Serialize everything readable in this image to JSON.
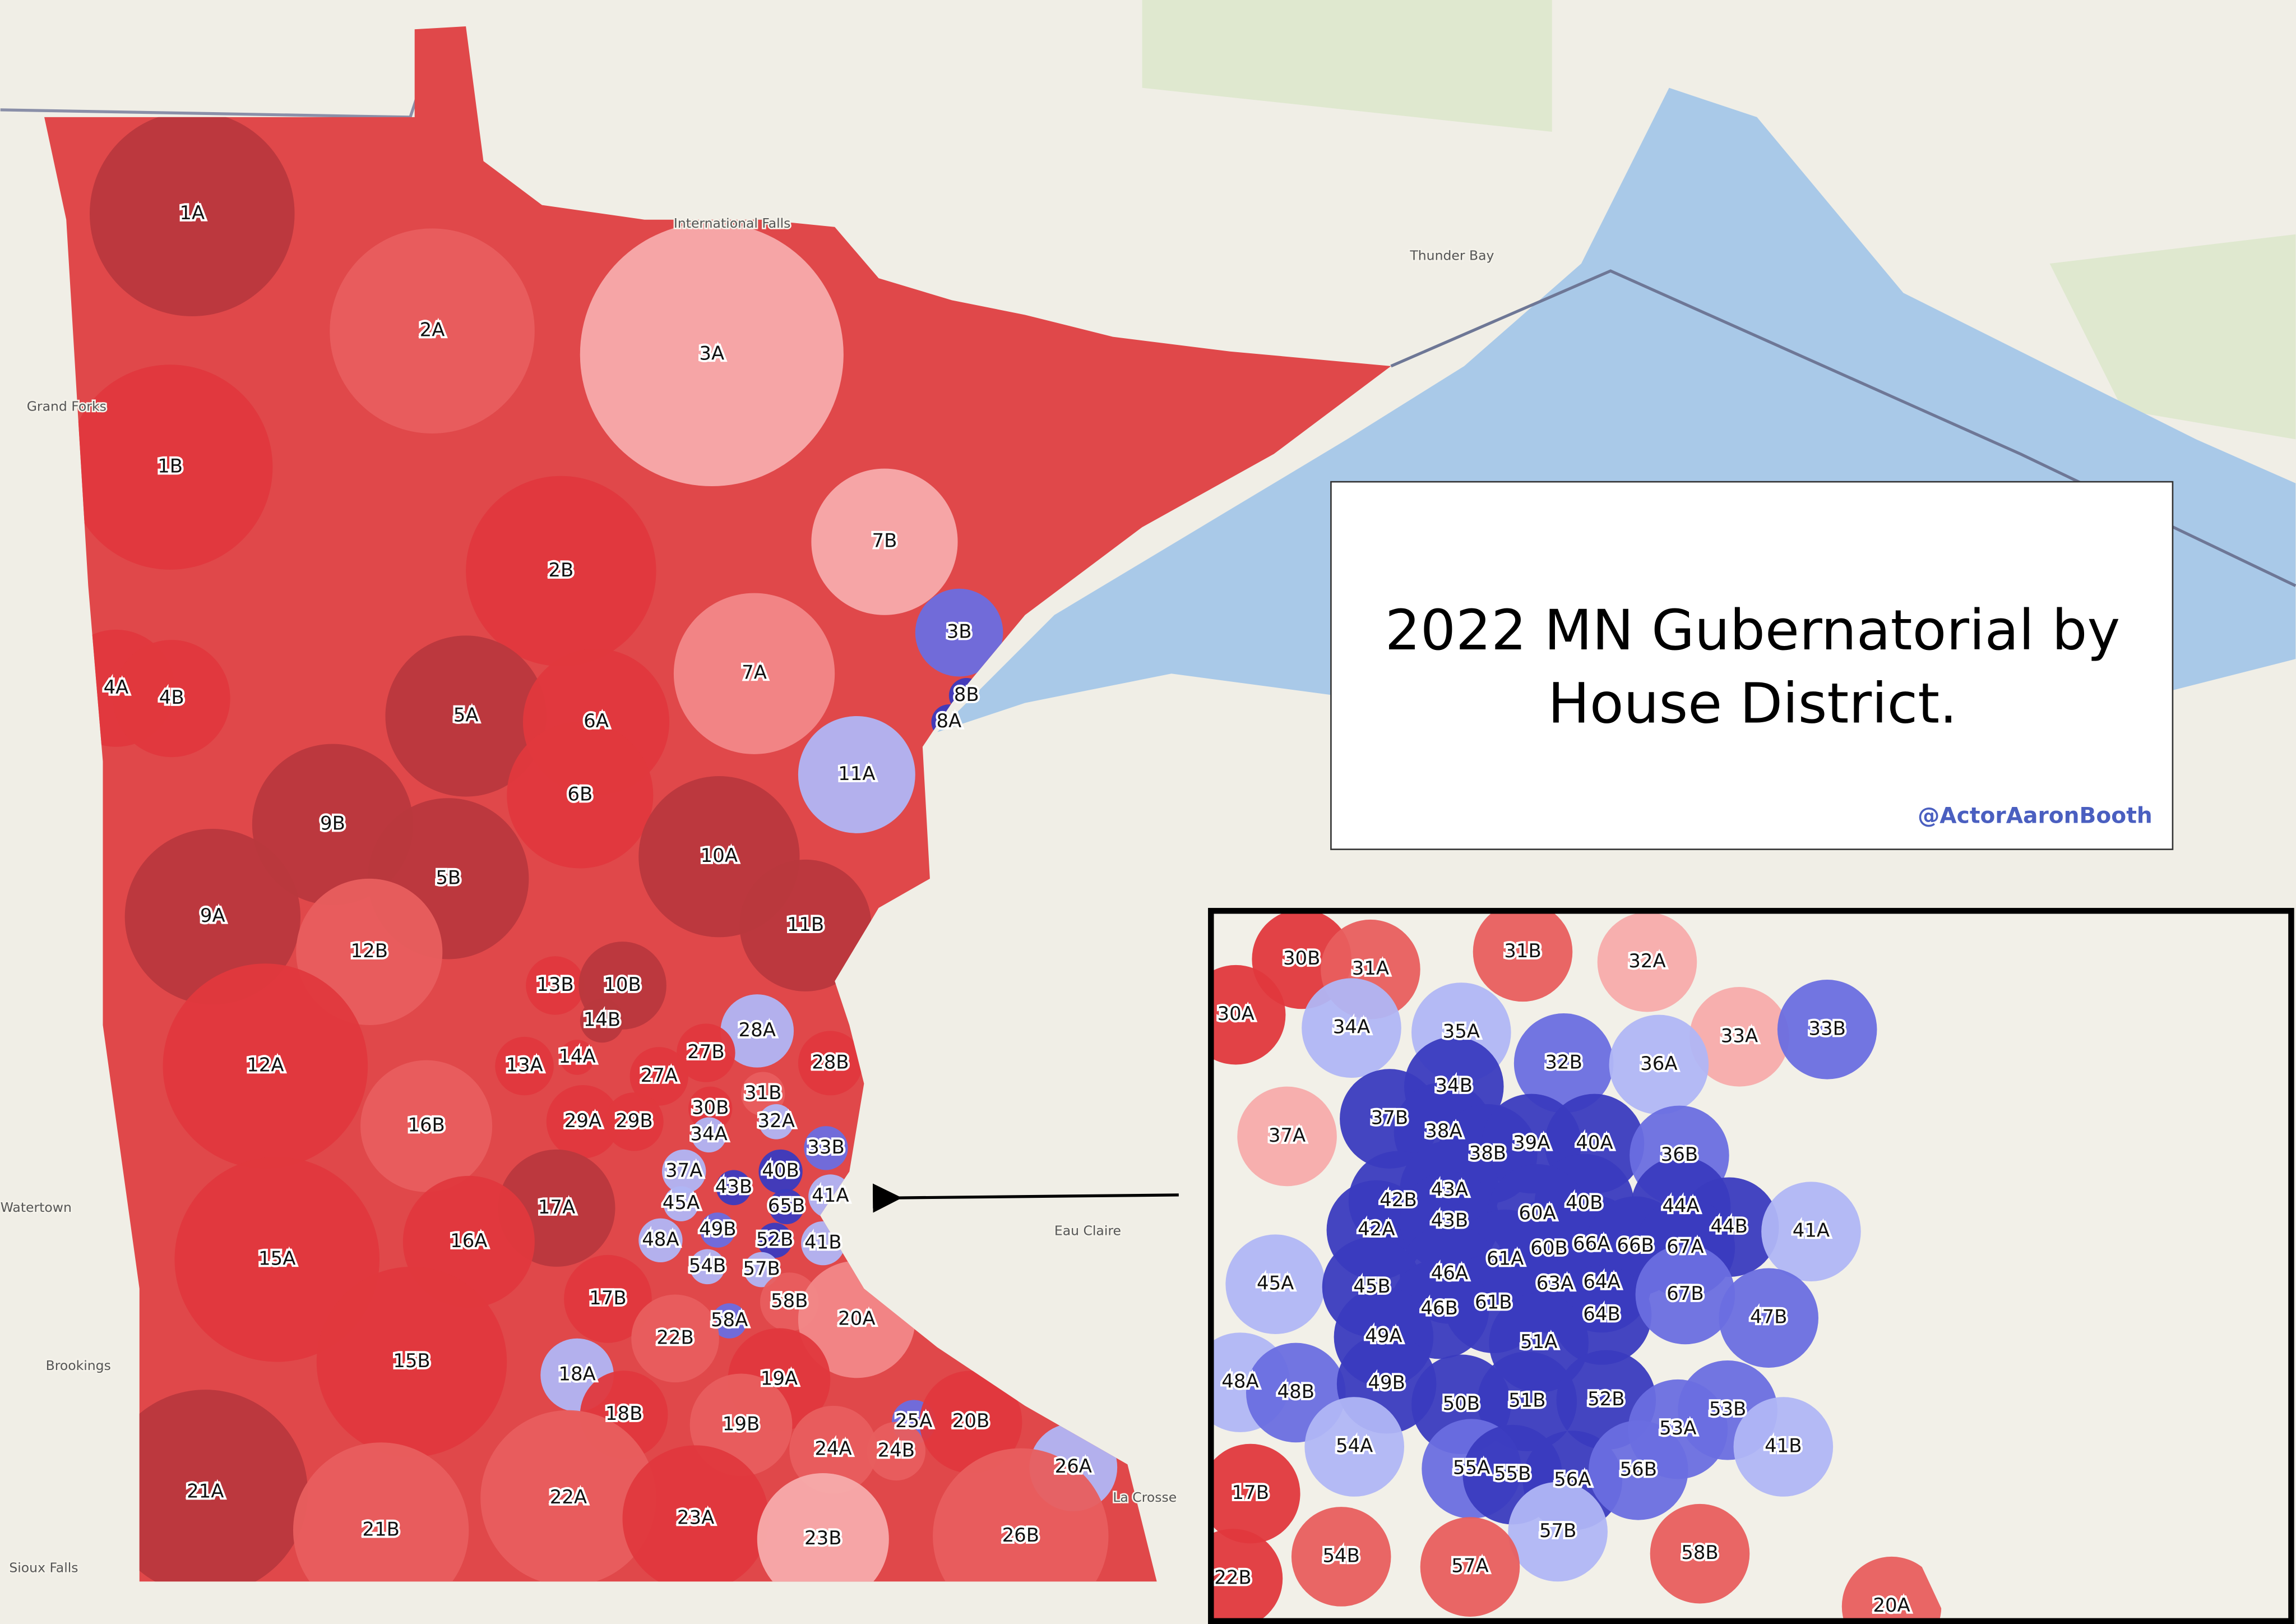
{
  "title_lines": [
    "2022 MN Gubernatorial by",
    "House District."
  ],
  "credit": "@ActorAaronBooth",
  "places": [
    "International Falls",
    "Thunder Bay",
    "Grand Forks",
    "Watertown",
    "Brookings",
    "Sioux Falls",
    "Eau Claire",
    "La Crosse"
  ],
  "districts": [
    "1A",
    "2A",
    "3A",
    "1B",
    "2B",
    "7B",
    "3B",
    "4A",
    "4B",
    "5A",
    "6A",
    "7A",
    "8B",
    "8A",
    "11A",
    "6B",
    "9B",
    "5B",
    "10A",
    "9A",
    "12B",
    "11B",
    "13B",
    "10B",
    "14B",
    "14A",
    "28A",
    "13A",
    "27B",
    "12A",
    "27A",
    "28B",
    "31B",
    "30B",
    "16B",
    "29A",
    "29B",
    "32A",
    "34A",
    "33B",
    "37A",
    "40B",
    "43B",
    "45A",
    "65B",
    "41A",
    "17A",
    "49B",
    "48A",
    "52B",
    "41B",
    "16A",
    "15A",
    "54B",
    "57B",
    "17B",
    "58B",
    "20A",
    "58A",
    "22B",
    "15B",
    "18A",
    "19A",
    "18B",
    "25A",
    "20B",
    "19B",
    "24A",
    "24B",
    "26A",
    "21A",
    "22A",
    "21B",
    "23A",
    "23B",
    "26B"
  ],
  "inset_districts": [
    "30B",
    "31A",
    "31B",
    "32A",
    "30A",
    "34A",
    "35A",
    "33A",
    "33B",
    "32B",
    "36A",
    "34B",
    "37B",
    "38A",
    "38B",
    "39A",
    "40A",
    "37A",
    "36B",
    "42B",
    "43A",
    "40B",
    "44A",
    "42A",
    "43B",
    "60A",
    "44B",
    "41A",
    "60B",
    "66A",
    "66B",
    "67A",
    "61A",
    "46A",
    "63A",
    "64A",
    "45A",
    "45B",
    "61B",
    "46B",
    "64B",
    "67B",
    "47B",
    "49A",
    "51A",
    "48A",
    "48B",
    "49B",
    "50B",
    "51B",
    "52B",
    "53B",
    "53A",
    "54A",
    "41B",
    "55A",
    "55B",
    "56A",
    "56B",
    "17B",
    "57B",
    "54B",
    "57A",
    "58B",
    "22B",
    "20A"
  ]
}
